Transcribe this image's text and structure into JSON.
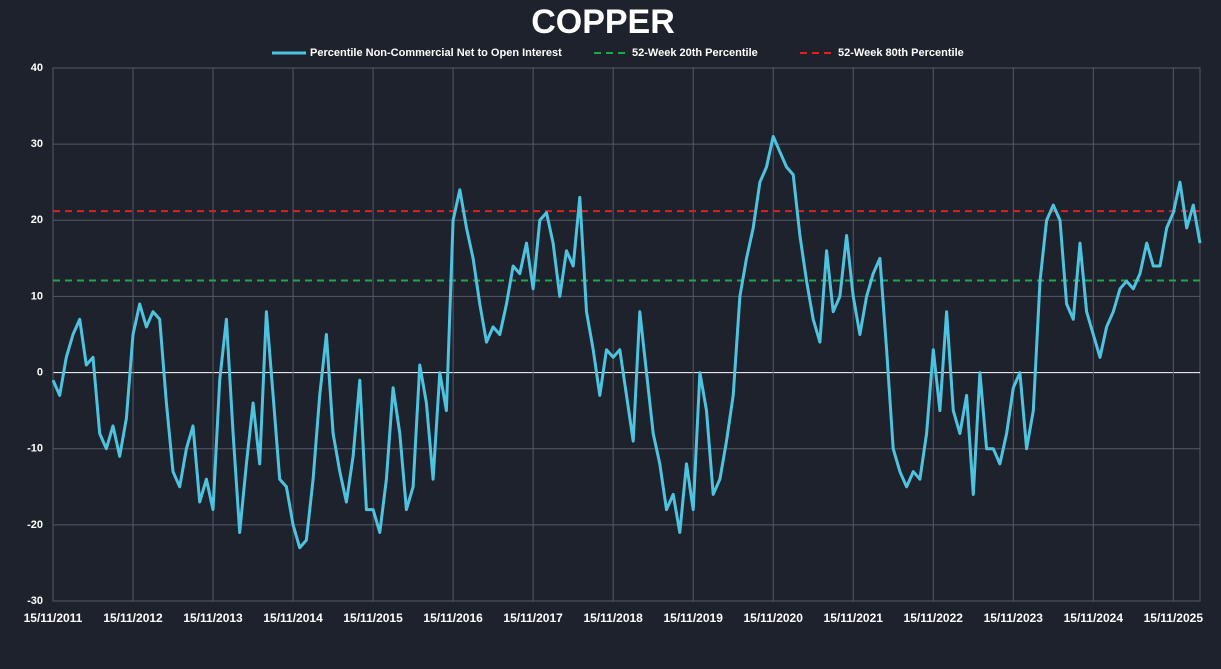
{
  "chart_data": {
    "type": "line",
    "title": "COPPER",
    "categories": [
      "15/11/2011",
      null,
      null,
      null,
      null,
      null,
      null,
      null,
      null,
      null,
      null,
      null,
      "15/11/2012",
      null,
      null,
      null,
      null,
      null,
      null,
      null,
      null,
      null,
      null,
      null,
      "15/11/2013",
      null,
      null,
      null,
      null,
      null,
      null,
      null,
      null,
      null,
      null,
      null,
      "15/11/2014",
      null,
      null,
      null,
      null,
      null,
      null,
      null,
      null,
      null,
      null,
      null,
      "15/11/2015",
      null,
      null,
      null,
      null,
      null,
      null,
      null,
      null,
      null,
      null,
      null,
      "15/11/2016",
      null,
      null,
      null,
      null,
      null,
      null,
      null,
      null,
      null,
      null,
      null,
      "15/11/2017",
      null,
      null,
      null,
      null,
      null,
      null,
      null,
      null,
      null,
      null,
      null,
      "15/11/2018",
      null,
      null,
      null,
      null,
      null,
      null,
      null,
      null,
      null,
      null,
      null,
      "15/11/2019",
      null,
      null,
      null,
      null,
      null,
      null,
      null,
      null,
      null,
      null,
      null,
      "15/11/2020",
      null,
      null,
      null,
      null,
      null,
      null,
      null,
      null,
      null,
      null,
      null,
      "15/11/2021",
      null,
      null,
      null,
      null,
      null,
      null,
      null,
      null,
      null,
      null,
      null,
      "15/11/2022",
      null,
      null,
      null,
      null,
      null,
      null,
      null,
      null,
      null,
      null,
      null,
      "15/11/2023",
      null,
      null,
      null,
      null,
      null,
      null,
      null,
      null,
      null,
      null,
      null,
      "15/11/2024",
      null,
      null,
      null,
      null,
      null,
      null,
      null,
      null,
      null,
      null,
      null,
      "15/11/2025",
      null,
      null,
      null,
      null
    ],
    "series": [
      {
        "name": "Percentile Non-Commercial Net to Open Interest",
        "color": "#4ec3df",
        "values": [
          -1,
          -3,
          2,
          5,
          7,
          1,
          2,
          -8,
          -10,
          -7,
          -11,
          -6,
          5,
          9,
          6,
          8,
          7,
          -4,
          -13,
          -15,
          -10,
          -7,
          -17,
          -14,
          -18,
          -1,
          7,
          -8,
          -21,
          -12,
          -4,
          -12,
          8,
          -3,
          -14,
          -15,
          -20,
          -23,
          -22,
          -14,
          -3,
          5,
          -8,
          -13,
          -17,
          -11,
          -1,
          -18,
          -18,
          -21,
          -14,
          -2,
          -8,
          -18,
          -15,
          1,
          -4,
          -14,
          0,
          -5,
          20,
          24,
          19,
          15,
          9,
          4,
          6,
          5,
          9,
          14,
          13,
          17,
          11,
          20,
          21,
          17,
          10,
          16,
          14,
          23,
          8,
          3,
          -3,
          3,
          2,
          3,
          -3,
          -9,
          8,
          0,
          -8,
          -12,
          -18,
          -16,
          -21,
          -12,
          -18,
          0,
          -5,
          -16,
          -14,
          -9,
          -3,
          10,
          15,
          19,
          25,
          27,
          31,
          29,
          27,
          26,
          18,
          12,
          7,
          4,
          16,
          8,
          10,
          18,
          10,
          5,
          10,
          13,
          15,
          3,
          -10,
          -13,
          -15,
          -13,
          -14,
          -8,
          3,
          -5,
          8,
          -5,
          -8,
          -3,
          -16,
          0,
          -10,
          -10,
          -12,
          -8,
          -2,
          0,
          -10,
          -5,
          12,
          20,
          22,
          20,
          9,
          7,
          17,
          8,
          5,
          2,
          6,
          8,
          11,
          12,
          11,
          13,
          17,
          14,
          14,
          19,
          21,
          25,
          19,
          22,
          17
        ]
      }
    ],
    "reference_lines": [
      {
        "name": "52-Week 20th Percentile",
        "color": "#1ea84a",
        "value": 12.1
      },
      {
        "name": "52-Week 80th Percentile",
        "color": "#e0201e",
        "value": 21.2
      }
    ],
    "ylim": [
      -30,
      40
    ],
    "yticks": [
      -30,
      -20,
      -10,
      0,
      10,
      20,
      30,
      40
    ],
    "grid": true
  }
}
